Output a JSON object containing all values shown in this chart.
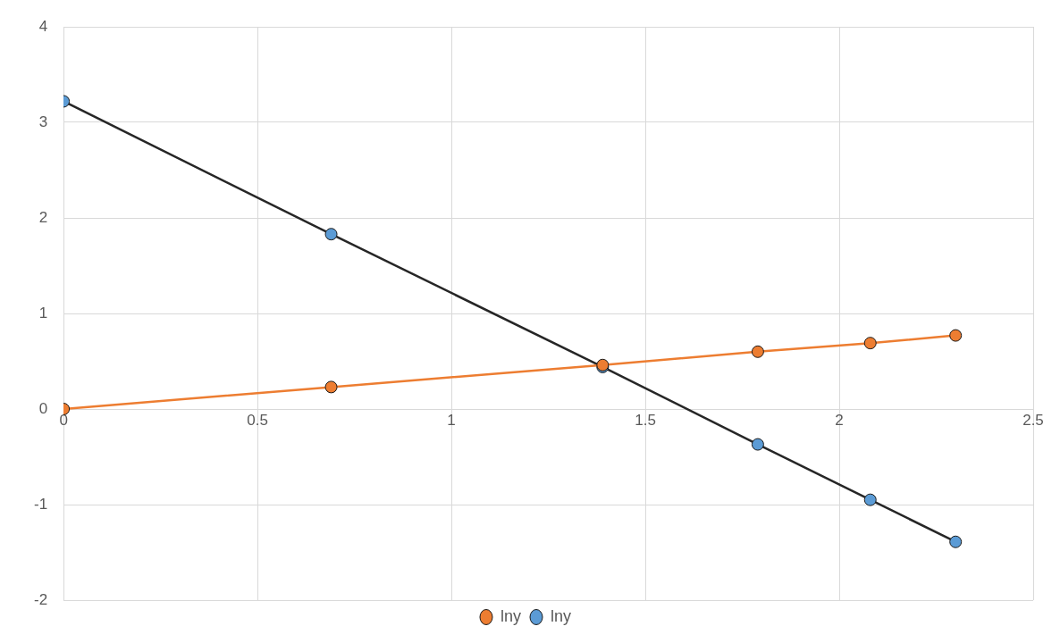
{
  "chart_data": {
    "type": "line",
    "x": [
      0,
      0.69,
      1.39,
      1.79,
      2.08,
      2.3
    ],
    "series": [
      {
        "name": "lny",
        "color": "#5b9bd5",
        "values": [
          3.22,
          1.83,
          0.44,
          -0.37,
          -0.95,
          -1.39
        ]
      },
      {
        "name": "lny",
        "color": "#ed7d31",
        "values": [
          0,
          0.23,
          0.46,
          0.6,
          0.69,
          0.77
        ]
      }
    ],
    "xlim": [
      0,
      2.5
    ],
    "xticks": [
      0,
      0.5,
      1,
      1.5,
      2,
      2.5
    ],
    "ylim": [
      -2,
      4
    ],
    "yticks": [
      -2,
      -1,
      0,
      1,
      2,
      3,
      4
    ],
    "grid": true,
    "legend": "bottom",
    "marker": "circle",
    "line_style": "solid"
  }
}
